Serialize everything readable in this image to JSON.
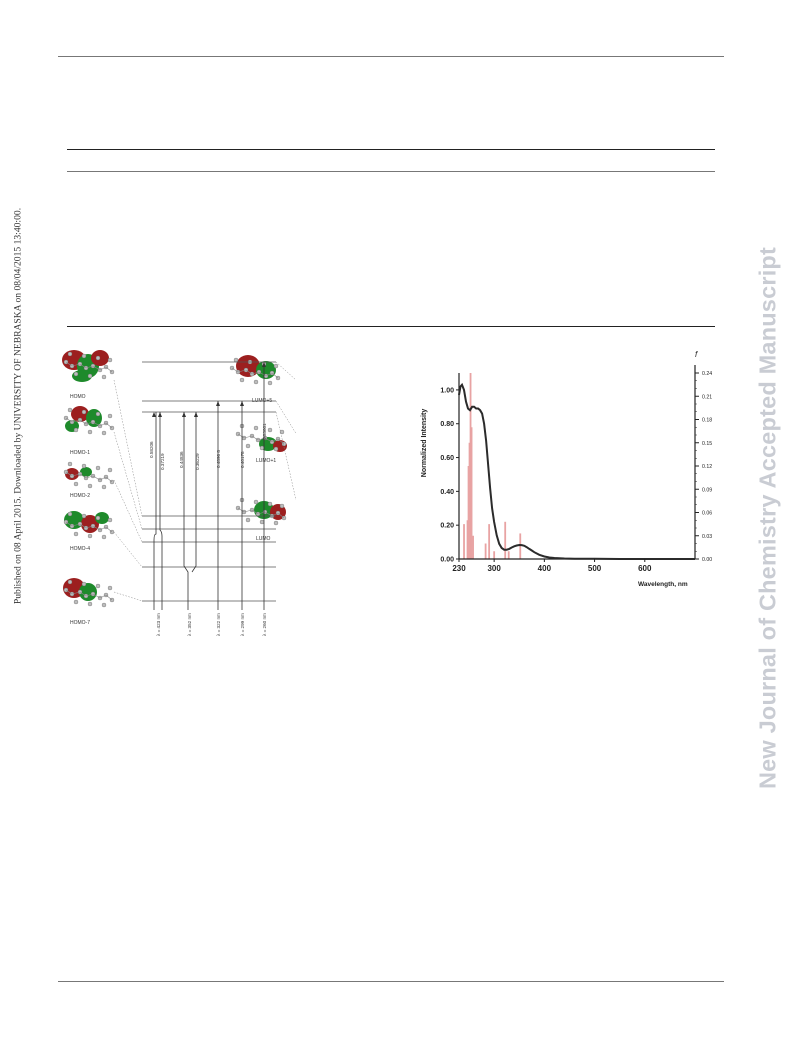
{
  "margin_left": "Published on 08 April 2015. Downloaded by UNIVERSITY OF NEBRASKA on 08/04/2015 13:40:00.",
  "margin_right": "New Journal of Chemistry Accepted Manuscript",
  "orbital_diagram": {
    "occupied": [
      "HOMO",
      "HOMO-1",
      "HOMO-2",
      "HOMO-4",
      "HOMO-7"
    ],
    "virtual": [
      "LUMO+5",
      "LUMO+1",
      "LUMO"
    ],
    "coefficients": [
      "0.58206",
      "0.37219",
      "0.44836",
      "0.36229",
      "0.4896 8",
      "0.40178",
      "0.53601"
    ],
    "wavelengths": [
      "λ = 423 nm",
      "λ = 352 nm",
      "λ = 322 nm",
      "λ = 299 nm",
      "λ = 260 nm"
    ],
    "colors": {
      "lobe_red": "#9c1f1f",
      "lobe_green": "#1e8a2b"
    }
  },
  "chart_data": {
    "type": "line",
    "xlabel": "Wavelength, nm",
    "ylabel": "Normalized Intensity",
    "y2label": "f",
    "xlim": [
      230,
      700
    ],
    "ylim": [
      0,
      1.1
    ],
    "y2lim": [
      0,
      0.24
    ],
    "x_ticks": [
      "230",
      "300",
      "400",
      "500",
      "600"
    ],
    "y_ticks": [
      "0.00",
      "0.20",
      "0.40",
      "0.60",
      "0.80",
      "1.00"
    ],
    "y2_ticks": [
      "0.00",
      "0.03",
      "0.06",
      "0.09",
      "0.12",
      "0.15",
      "0.18",
      "0.21",
      "0.24"
    ],
    "colors": {
      "spectrum": "#2b2b2b",
      "bars": "#e8a3a3"
    },
    "series": [
      {
        "type": "line",
        "x": [
          230,
          233,
          236,
          240,
          244,
          248,
          252,
          256,
          260,
          264,
          268,
          272,
          276,
          280,
          284,
          288,
          292,
          296,
          300,
          305,
          310,
          315,
          320,
          325,
          330,
          335,
          340,
          345,
          350,
          355,
          360,
          365,
          370,
          375,
          380,
          390,
          400,
          410,
          420,
          440,
          460,
          500,
          550,
          600,
          650,
          700
        ],
        "values": [
          0.97,
          1.02,
          1.03,
          1.0,
          0.93,
          0.89,
          0.88,
          0.9,
          0.9,
          0.89,
          0.89,
          0.88,
          0.86,
          0.8,
          0.7,
          0.56,
          0.42,
          0.3,
          0.22,
          0.14,
          0.09,
          0.065,
          0.055,
          0.055,
          0.06,
          0.068,
          0.075,
          0.08,
          0.083,
          0.082,
          0.078,
          0.07,
          0.06,
          0.05,
          0.04,
          0.025,
          0.015,
          0.009,
          0.006,
          0.003,
          0.002,
          0.001,
          0.0,
          0.0,
          0.0,
          0.0
        ]
      },
      {
        "type": "bar",
        "axis": "y2",
        "x": [
          240,
          247,
          249,
          251,
          253,
          255,
          258,
          283,
          290,
          300,
          322,
          329,
          352
        ],
        "values": [
          0.045,
          0.05,
          0.12,
          0.15,
          0.24,
          0.17,
          0.03,
          0.02,
          0.045,
          0.01,
          0.048,
          0.01,
          0.033
        ]
      }
    ]
  }
}
